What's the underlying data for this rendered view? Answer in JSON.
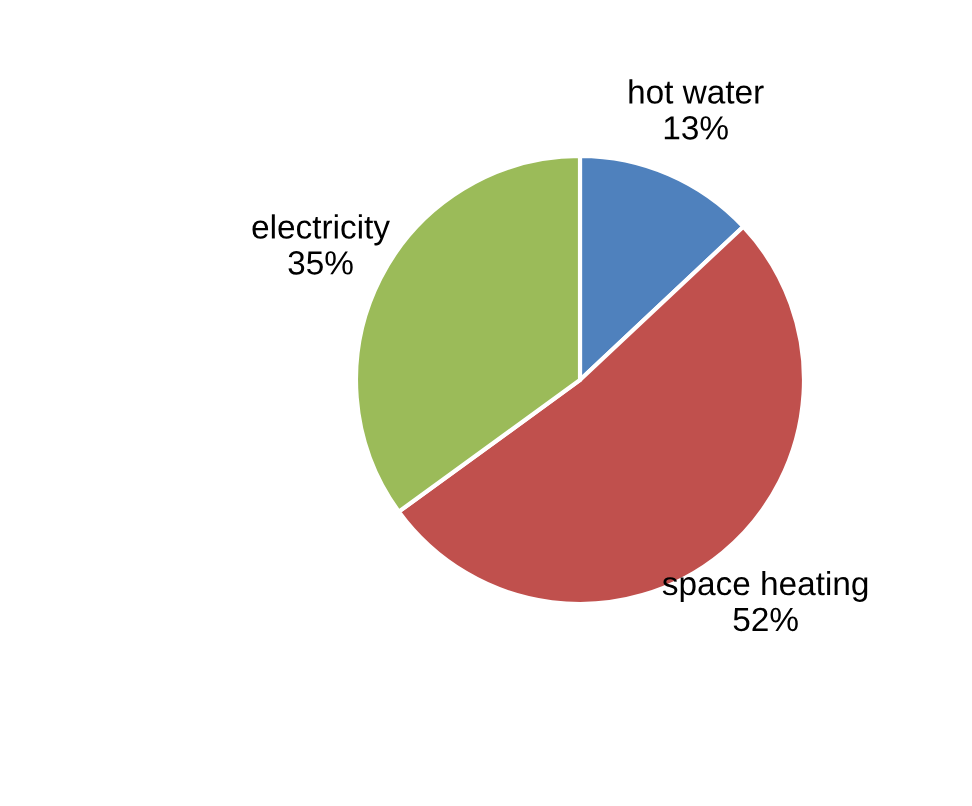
{
  "chart_data": {
    "type": "pie",
    "categories": [
      "hot water",
      "space heating",
      "electricity"
    ],
    "values": [
      13,
      52,
      35
    ],
    "value_labels": [
      "13%",
      "52%",
      "35%"
    ],
    "colors": [
      "#4f81bd",
      "#c0504d",
      "#9bbb59"
    ]
  }
}
